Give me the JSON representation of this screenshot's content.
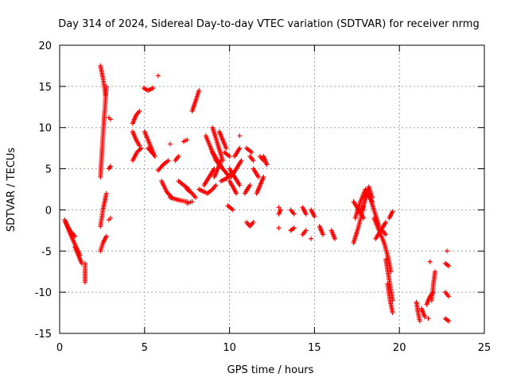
{
  "chart_data": {
    "type": "scatter",
    "title": "Day 314 of 2024, Sidereal Day-to-day VTEC variation (SDTVAR) for receiver nrmg",
    "xlabel": "GPS time / hours",
    "ylabel": "SDTVAR / TECUs",
    "xlim": [
      0,
      25
    ],
    "ylim": [
      -15,
      20
    ],
    "xticks": [
      "0",
      "5",
      "10",
      "15",
      "20",
      "25"
    ],
    "yticks": [
      "-15",
      "-10",
      "-5",
      "0",
      "5",
      "10",
      "15",
      "20"
    ],
    "grid": true,
    "marker": "+",
    "marker_color": "#ff0000",
    "tracks": [
      {
        "x": [
          0.3,
          0.6,
          0.9,
          1.2
        ],
        "y": [
          -1.2,
          -2.8,
          -4.2,
          -5.5
        ]
      },
      {
        "x": [
          0.35,
          0.6,
          0.9
        ],
        "y": [
          -1.5,
          -2.5,
          -3.2
        ]
      },
      {
        "x": [
          0.9,
          1.1,
          1.3
        ],
        "y": [
          -4.5,
          -5.5,
          -6.5
        ]
      },
      {
        "x": [
          1.5,
          1.5
        ],
        "y": [
          -6.5,
          -8.8
        ]
      },
      {
        "x": [
          2.4,
          2.55,
          2.7
        ],
        "y": [
          17.5,
          16.0,
          14.0
        ]
      },
      {
        "x": [
          2.4,
          2.55,
          2.75
        ],
        "y": [
          4.0,
          9.0,
          15.0
        ]
      },
      {
        "x": [
          2.4,
          2.55,
          2.75
        ],
        "y": [
          -5.0,
          -4.0,
          -3.2
        ]
      },
      {
        "x": [
          2.4,
          2.55,
          2.75
        ],
        "y": [
          -2.0,
          0.0,
          2.0
        ]
      },
      {
        "x": [
          2.9,
          3.0
        ],
        "y": [
          11.2,
          11.0
        ]
      },
      {
        "x": [
          2.9,
          3.0
        ],
        "y": [
          5.0,
          5.3
        ]
      },
      {
        "x": [
          2.9,
          3.0
        ],
        "y": [
          -1.2,
          -1.0
        ]
      },
      {
        "x": [
          4.3,
          4.5,
          4.7
        ],
        "y": [
          10.5,
          11.5,
          12.0
        ]
      },
      {
        "x": [
          4.3,
          4.5,
          4.7
        ],
        "y": [
          9.5,
          8.5,
          7.8
        ]
      },
      {
        "x": [
          4.3,
          4.55,
          4.8
        ],
        "y": [
          6.0,
          7.0,
          7.5
        ]
      },
      {
        "x": [
          4.95,
          5.2,
          5.5
        ],
        "y": [
          14.8,
          14.5,
          14.8
        ]
      },
      {
        "x": [
          5.0,
          5.3,
          5.6
        ],
        "y": [
          9.5,
          8.0,
          6.5
        ]
      },
      {
        "x": [
          5.2,
          5.5
        ],
        "y": [
          7.5,
          6.8
        ]
      },
      {
        "x": [
          5.8
        ],
        "y": [
          16.3
        ]
      },
      {
        "x": [
          5.8,
          6.1,
          6.4
        ],
        "y": [
          4.8,
          5.5,
          6.0
        ]
      },
      {
        "x": [
          6.0,
          6.3,
          6.6
        ],
        "y": [
          3.5,
          2.2,
          1.5
        ]
      },
      {
        "x": [
          6.5
        ],
        "y": [
          8.0
        ]
      },
      {
        "x": [
          6.8,
          7.0
        ],
        "y": [
          6.0,
          6.5
        ]
      },
      {
        "x": [
          6.5,
          7.0,
          7.5
        ],
        "y": [
          1.5,
          1.2,
          1.0
        ]
      },
      {
        "x": [
          7.0,
          7.3,
          7.6
        ],
        "y": [
          3.5,
          3.0,
          2.5
        ]
      },
      {
        "x": [
          7.3,
          7.5
        ],
        "y": [
          8.3,
          8.5
        ]
      },
      {
        "x": [
          7.5,
          7.8,
          8.0
        ],
        "y": [
          2.5,
          2.0,
          1.5
        ]
      },
      {
        "x": [
          7.5,
          7.8
        ],
        "y": [
          0.8,
          1.0
        ]
      },
      {
        "x": [
          7.8,
          8.0,
          8.2
        ],
        "y": [
          12.0,
          13.2,
          14.5
        ]
      },
      {
        "x": [
          8.2,
          8.5,
          8.7
        ],
        "y": [
          2.5,
          2.2,
          2.0
        ]
      },
      {
        "x": [
          8.5,
          8.8,
          9.1
        ],
        "y": [
          3.0,
          4.0,
          5.0
        ]
      },
      {
        "x": [
          8.6,
          8.9,
          9.2
        ],
        "y": [
          9.0,
          7.5,
          6.0
        ]
      },
      {
        "x": [
          8.7,
          9.0,
          9.2
        ],
        "y": [
          2.0,
          2.5,
          3.0
        ]
      },
      {
        "x": [
          9.0,
          9.3,
          9.6
        ],
        "y": [
          10.0,
          8.0,
          6.0
        ]
      },
      {
        "x": [
          9.0,
          9.3,
          9.6
        ],
        "y": [
          7.0,
          6.0,
          5.0
        ]
      },
      {
        "x": [
          9.1,
          9.3,
          9.5
        ],
        "y": [
          4.0,
          5.0,
          6.0
        ]
      },
      {
        "x": [
          9.4,
          9.6,
          9.8
        ],
        "y": [
          9.5,
          8.5,
          7.5
        ]
      },
      {
        "x": [
          9.2,
          9.6,
          10.0
        ],
        "y": [
          6.0,
          5.0,
          4.0
        ]
      },
      {
        "x": [
          9.5,
          9.8,
          10.2
        ],
        "y": [
          3.5,
          3.8,
          4.5
        ]
      },
      {
        "x": [
          9.7,
          10.0
        ],
        "y": [
          7.0,
          6.5
        ]
      },
      {
        "x": [
          10.0,
          10.3,
          10.6
        ],
        "y": [
          5.0,
          4.0,
          3.0
        ]
      },
      {
        "x": [
          10.1,
          10.4,
          10.7
        ],
        "y": [
          4.0,
          5.0,
          6.0
        ]
      },
      {
        "x": [
          10.0,
          10.2,
          10.4
        ],
        "y": [
          3.5,
          2.8,
          2.0
        ]
      },
      {
        "x": [
          9.9,
          10.2
        ],
        "y": [
          0.5,
          0.0
        ]
      },
      {
        "x": [
          10.3,
          10.6
        ],
        "y": [
          6.5,
          7.5
        ]
      },
      {
        "x": [
          10.6
        ],
        "y": [
          9.0
        ]
      },
      {
        "x": [
          10.9,
          11.2
        ],
        "y": [
          2.0,
          3.0
        ]
      },
      {
        "x": [
          11.0,
          11.3
        ],
        "y": [
          7.5,
          7.0
        ]
      },
      {
        "x": [
          11.0,
          11.2,
          11.4
        ],
        "y": [
          -1.5,
          -2.0,
          -1.5
        ]
      },
      {
        "x": [
          11.4,
          11.7
        ],
        "y": [
          5.0,
          4.0
        ]
      },
      {
        "x": [
          11.2,
          11.4
        ],
        "y": [
          6.5,
          6.0
        ]
      },
      {
        "x": [
          11.6,
          11.8,
          12.0
        ],
        "y": [
          2.0,
          3.0,
          4.0
        ]
      },
      {
        "x": [
          11.8,
          12.0
        ],
        "y": [
          6.5,
          6.0
        ]
      },
      {
        "x": [
          12.0,
          12.2
        ],
        "y": [
          6.5,
          5.5
        ]
      },
      {
        "x": [
          12.9
        ],
        "y": [
          0.3
        ]
      },
      {
        "x": [
          12.9,
          13.0
        ],
        "y": [
          -0.5,
          0.0
        ]
      },
      {
        "x": [
          12.9
        ],
        "y": [
          -2.2
        ]
      },
      {
        "x": [
          13.6,
          13.8
        ],
        "y": [
          0.0,
          -0.5
        ]
      },
      {
        "x": [
          13.6,
          13.8
        ],
        "y": [
          -2.5,
          -2.2
        ]
      },
      {
        "x": [
          14.3,
          14.5
        ],
        "y": [
          0.3,
          -0.5
        ]
      },
      {
        "x": [
          14.3,
          14.5
        ],
        "y": [
          -3.0,
          -2.5
        ]
      },
      {
        "x": [
          14.8,
          15.0
        ],
        "y": [
          0.0,
          -0.8
        ]
      },
      {
        "x": [
          14.8
        ],
        "y": [
          -3.5
        ]
      },
      {
        "x": [
          15.3,
          15.5
        ],
        "y": [
          -2.0,
          -3.0
        ]
      },
      {
        "x": [
          16.0,
          16.2
        ],
        "y": [
          -2.5,
          -3.5
        ]
      },
      {
        "x": [
          17.3,
          17.6,
          17.9
        ],
        "y": [
          -4.0,
          -2.0,
          0.5
        ]
      },
      {
        "x": [
          17.3,
          17.6,
          17.9
        ],
        "y": [
          1.0,
          0.0,
          -1.0
        ]
      },
      {
        "x": [
          17.4,
          17.7,
          18.0
        ],
        "y": [
          -1.0,
          1.0,
          2.5
        ]
      },
      {
        "x": [
          17.8,
          18.1,
          18.4
        ],
        "y": [
          0.0,
          2.0,
          1.0
        ]
      },
      {
        "x": [
          18.0,
          18.2,
          18.4
        ],
        "y": [
          1.5,
          2.8,
          1.5
        ]
      },
      {
        "x": [
          18.2,
          18.5,
          18.8
        ],
        "y": [
          2.0,
          0.0,
          -2.0
        ]
      },
      {
        "x": [
          18.5,
          18.8,
          19.1
        ],
        "y": [
          -1.0,
          -2.5,
          -4.0
        ]
      },
      {
        "x": [
          18.6,
          18.9,
          19.2
        ],
        "y": [
          -3.5,
          -2.5,
          -1.5
        ]
      },
      {
        "x": [
          19.0,
          19.2
        ],
        "y": [
          -2.5,
          -3.0
        ]
      },
      {
        "x": [
          19.1,
          19.3,
          19.5
        ],
        "y": [
          -4.0,
          -5.5,
          -7.5
        ]
      },
      {
        "x": [
          19.2,
          19.4,
          19.6
        ],
        "y": [
          -6.0,
          -8.5,
          -11.0
        ]
      },
      {
        "x": [
          19.3,
          19.45,
          19.6
        ],
        "y": [
          -9.0,
          -11.0,
          -12.5
        ]
      },
      {
        "x": [
          19.4,
          19.6
        ],
        "y": [
          -1.0,
          -0.2
        ]
      },
      {
        "x": [
          21.0,
          21.1,
          21.2
        ],
        "y": [
          -11.2,
          -12.5,
          -13.5
        ]
      },
      {
        "x": [
          21.3,
          21.5
        ],
        "y": [
          -12.0,
          -13.0
        ]
      },
      {
        "x": [
          21.6,
          21.8,
          22.0
        ],
        "y": [
          -11.5,
          -10.5,
          -10.0
        ]
      },
      {
        "x": [
          21.7
        ],
        "y": [
          -13.2
        ]
      },
      {
        "x": [
          21.8
        ],
        "y": [
          -6.3
        ]
      },
      {
        "x": [
          21.9,
          22.0,
          22.1
        ],
        "y": [
          -11.0,
          -9.0,
          -7.5
        ]
      },
      {
        "x": [
          22.7,
          22.9
        ],
        "y": [
          -6.5,
          -6.8
        ]
      },
      {
        "x": [
          22.8
        ],
        "y": [
          -5.0
        ]
      },
      {
        "x": [
          22.7,
          22.9
        ],
        "y": [
          -10.0,
          -10.5
        ]
      },
      {
        "x": [
          22.7,
          22.9
        ],
        "y": [
          -13.2,
          -13.5
        ]
      }
    ]
  }
}
